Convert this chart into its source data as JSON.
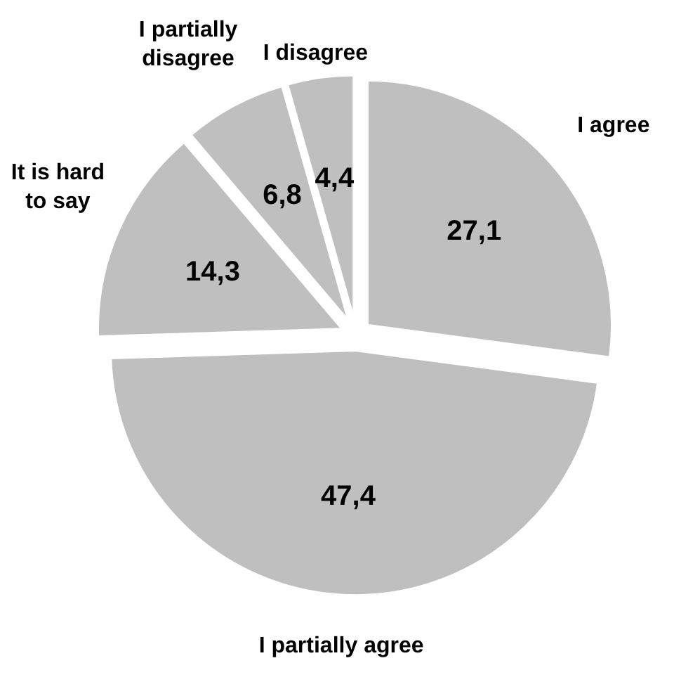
{
  "chart_data": {
    "type": "pie",
    "categories": [
      "I agree",
      "I partially agree",
      "It is hard\nto say",
      "I partially\ndisagree",
      "I disagree"
    ],
    "values": [
      27.1,
      47.4,
      14.3,
      6.8,
      4.4
    ],
    "value_labels": [
      "27,1",
      "47,4",
      "14,3",
      "6,8",
      "4,4"
    ],
    "colors": [
      "#bfbfbf",
      "#bfbfbf",
      "#bfbfbf",
      "#bfbfbf",
      "#bfbfbf"
    ],
    "legend": false
  }
}
